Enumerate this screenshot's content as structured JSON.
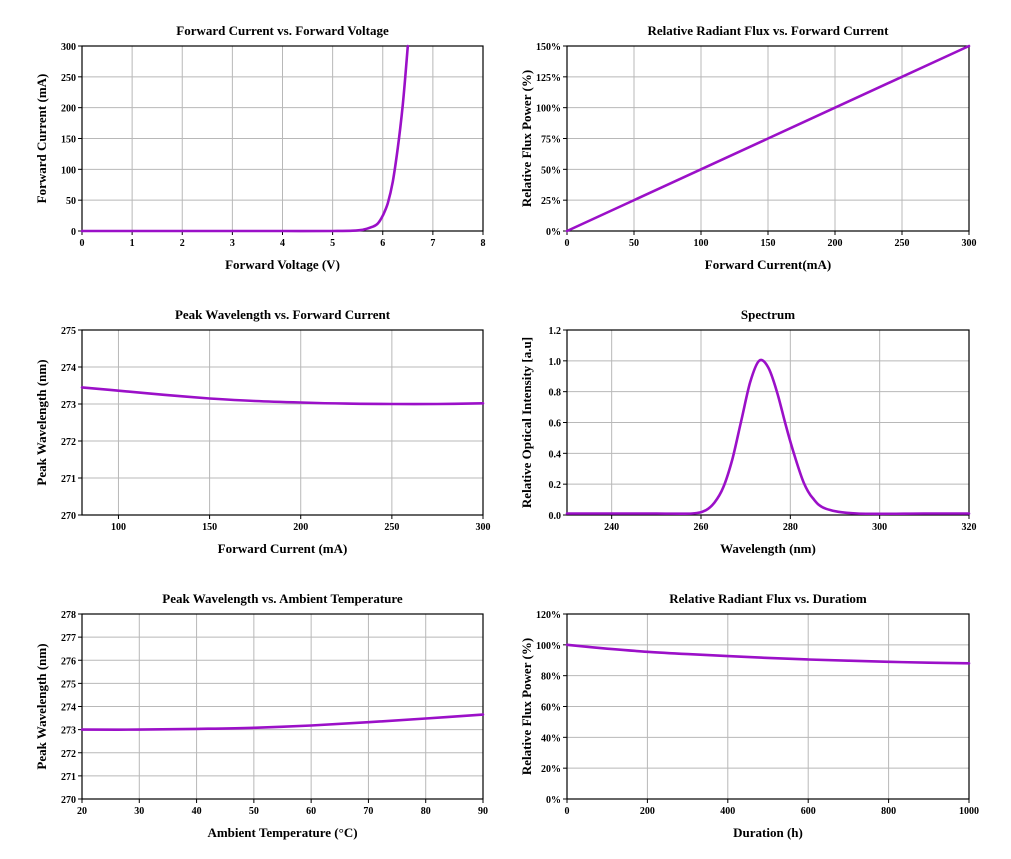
{
  "chart_data": [
    {
      "type": "line",
      "title": "Forward Current vs. Forward Voltage",
      "xlabel": "Forward Voltage (V)",
      "ylabel": "Forward Current (mA)",
      "xlim": [
        0,
        8
      ],
      "ylim": [
        0,
        300
      ],
      "xticks": [
        0,
        1,
        2,
        3,
        4,
        5,
        6,
        7,
        8
      ],
      "yticks": [
        0,
        50,
        100,
        150,
        200,
        250,
        300
      ],
      "xtick_labels": [
        "0",
        "1",
        "2",
        "3",
        "4",
        "5",
        "6",
        "7",
        "8"
      ],
      "ytick_labels": [
        "0",
        "50",
        "100",
        "150",
        "200",
        "250",
        "300"
      ],
      "grid": true,
      "series": [
        {
          "color": "#9b10c8",
          "x": [
            0,
            1,
            2,
            3,
            4,
            5,
            5.4,
            5.6,
            5.8,
            5.9,
            6.0,
            6.1,
            6.2,
            6.3,
            6.4,
            6.5
          ],
          "y": [
            0,
            0,
            0,
            0,
            0,
            0,
            0.5,
            2,
            7,
            12,
            25,
            45,
            80,
            135,
            205,
            300
          ]
        }
      ]
    },
    {
      "type": "line",
      "title": "Relative Radiant Flux vs. Forward Current",
      "xlabel": "Forward Current(mA)",
      "ylabel": "Relative Flux Power (%)",
      "xlim": [
        0,
        300
      ],
      "ylim": [
        0,
        150
      ],
      "xticks": [
        0,
        50,
        100,
        150,
        200,
        250,
        300
      ],
      "yticks": [
        0,
        25,
        50,
        75,
        100,
        125,
        150
      ],
      "xtick_labels": [
        "0",
        "50",
        "100",
        "150",
        "200",
        "250",
        "300"
      ],
      "ytick_labels": [
        "0%",
        "25%",
        "50%",
        "75%",
        "100%",
        "125%",
        "150%"
      ],
      "grid": true,
      "series": [
        {
          "color": "#9b10c8",
          "x": [
            0,
            300
          ],
          "y": [
            0,
            150
          ]
        }
      ]
    },
    {
      "type": "line",
      "title": "Peak Wavelength vs. Forward Current",
      "xlabel": "Forward Current (mA)",
      "ylabel": "Peak Wavelength (nm)",
      "xlim": [
        80,
        300
      ],
      "ylim": [
        270,
        275
      ],
      "xticks": [
        100,
        150,
        200,
        250,
        300
      ],
      "yticks": [
        270,
        271,
        272,
        273,
        274,
        275
      ],
      "xtick_labels": [
        "100",
        "150",
        "200",
        "250",
        "300"
      ],
      "ytick_labels": [
        "270",
        "271",
        "272",
        "273",
        "274",
        "275"
      ],
      "grid": true,
      "series": [
        {
          "color": "#9b10c8",
          "x": [
            80,
            100,
            125,
            150,
            175,
            200,
            225,
            250,
            275,
            300
          ],
          "y": [
            273.45,
            273.36,
            273.25,
            273.15,
            273.08,
            273.04,
            273.01,
            273.0,
            273.0,
            273.02
          ]
        }
      ]
    },
    {
      "type": "line",
      "title": "Spectrum",
      "xlabel": "Wavelength (nm)",
      "ylabel": "Relative Optical Intensity [a.u]",
      "xlim": [
        230,
        320
      ],
      "ylim": [
        0,
        1.2
      ],
      "xticks": [
        240,
        260,
        280,
        300,
        320
      ],
      "yticks": [
        0,
        0.2,
        0.4,
        0.6,
        0.8,
        1.0,
        1.2
      ],
      "xtick_labels": [
        "240",
        "260",
        "280",
        "300",
        "320"
      ],
      "ytick_labels": [
        "0.0",
        "0.2",
        "0.4",
        "0.6",
        "0.8",
        "1.0",
        "1.2"
      ],
      "grid": true,
      "series": [
        {
          "color": "#9b10c8",
          "x": [
            230,
            240,
            250,
            258,
            261,
            263,
            265,
            267,
            269,
            271,
            273,
            275,
            277,
            279,
            281,
            283,
            285,
            288,
            295,
            310,
            320
          ],
          "y": [
            0.01,
            0.01,
            0.01,
            0.01,
            0.03,
            0.08,
            0.18,
            0.36,
            0.61,
            0.86,
            1.0,
            0.96,
            0.8,
            0.58,
            0.38,
            0.21,
            0.11,
            0.04,
            0.01,
            0.01,
            0.01
          ]
        }
      ]
    },
    {
      "type": "line",
      "title": "Peak Wavelength vs. Ambient Temperature",
      "xlabel": "Ambient Temperature (°C)",
      "ylabel": "Peak Wavelength (nm)",
      "xlim": [
        20,
        90
      ],
      "ylim": [
        270,
        278
      ],
      "xticks": [
        20,
        30,
        40,
        50,
        60,
        70,
        80,
        90
      ],
      "yticks": [
        270,
        271,
        272,
        273,
        274,
        275,
        276,
        277,
        278
      ],
      "xtick_labels": [
        "20",
        "30",
        "40",
        "50",
        "60",
        "70",
        "80",
        "90"
      ],
      "ytick_labels": [
        "270",
        "271",
        "272",
        "273",
        "274",
        "275",
        "276",
        "277",
        "278"
      ],
      "grid": true,
      "series": [
        {
          "color": "#9b10c8",
          "x": [
            20,
            30,
            40,
            50,
            60,
            70,
            80,
            90
          ],
          "y": [
            273.0,
            273.0,
            273.03,
            273.08,
            273.18,
            273.32,
            273.48,
            273.65
          ]
        }
      ]
    },
    {
      "type": "line",
      "title": "Relative Radiant Flux vs. Duratiom",
      "xlabel": "Duration (h)",
      "ylabel": "Relative Flux Power (%)",
      "xlim": [
        0,
        1000
      ],
      "ylim": [
        0,
        120
      ],
      "xticks": [
        0,
        200,
        400,
        600,
        800,
        1000
      ],
      "yticks": [
        0,
        20,
        40,
        60,
        80,
        100,
        120
      ],
      "xtick_labels": [
        "0",
        "200",
        "400",
        "600",
        "800",
        "1000"
      ],
      "ytick_labels": [
        "0%",
        "20%",
        "40%",
        "60%",
        "80%",
        "100%",
        "120%"
      ],
      "grid": true,
      "series": [
        {
          "color": "#9b10c8",
          "x": [
            0,
            100,
            200,
            300,
            400,
            500,
            600,
            700,
            800,
            900,
            1000
          ],
          "y": [
            100,
            97.5,
            95.5,
            94,
            92.7,
            91.5,
            90.5,
            89.7,
            89,
            88.4,
            88
          ]
        }
      ]
    }
  ]
}
